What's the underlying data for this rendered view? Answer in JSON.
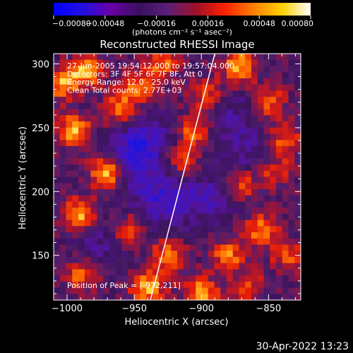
{
  "chart_data": {
    "type": "heatmap",
    "title": "Reconstructed RHESSI Image",
    "xlabel": "Heliocentric X (arcsec)",
    "ylabel": "Heliocentric Y (arcsec)",
    "xlim": [
      -1010,
      -826
    ],
    "ylim": [
      115,
      308
    ],
    "xticks": [
      -1000,
      -950,
      -900,
      -850
    ],
    "xtick_labels": [
      "−1000",
      "−950",
      "−900",
      "−850"
    ],
    "yticks": [
      150,
      200,
      250,
      300
    ],
    "ytick_labels": [
      "150",
      "200",
      "250",
      "300"
    ],
    "colorbar": {
      "range": [
        -0.0008,
        0.0008
      ],
      "ticks": [
        -0.0008,
        -0.00048,
        -0.00016,
        0.00016,
        0.00048,
        0.0008
      ],
      "tick_labels": [
        "−0.00080",
        "−0.00048",
        "−0.00016",
        "0.00016",
        "0.00048",
        "0.00080"
      ],
      "unit_label": "(photons cm⁻² s⁻¹ asec⁻²)",
      "colors": [
        "#0000ff",
        "#2010e0",
        "#6a00a8",
        "#3a1060",
        "#5a2078",
        "#a01028",
        "#ff2000",
        "#ff8000",
        "#ffd000",
        "#ffffff"
      ]
    },
    "limb_line": {
      "x": [
        -938,
        -890
      ],
      "y": [
        115,
        308
      ]
    },
    "annotations": [
      "27-Jun-2005 19:54:12.000 to 19:57:04.000",
      "Detectors: 3F 4F 5F 6F 7F 8F, Att 0",
      "Energy Range: 12.0 - 25.0 keV",
      "Clean    Total counts: 2.77E+03"
    ],
    "peak_label": "Position of Peak = [-972,211]",
    "bright_regions": [
      {
        "x": -970,
        "y": 215,
        "level": 1.0
      },
      {
        "x": -990,
        "y": 182,
        "level": 0.85
      },
      {
        "x": -995,
        "y": 248,
        "level": 0.8
      },
      {
        "x": -1003,
        "y": 285,
        "level": 0.8
      },
      {
        "x": -985,
        "y": 295,
        "level": 0.75
      },
      {
        "x": -960,
        "y": 265,
        "level": 0.7
      },
      {
        "x": -945,
        "y": 283,
        "level": 0.65
      },
      {
        "x": -928,
        "y": 300,
        "level": 0.55
      },
      {
        "x": -905,
        "y": 248,
        "level": 0.7
      },
      {
        "x": -896,
        "y": 275,
        "level": 0.6
      },
      {
        "x": -915,
        "y": 225,
        "level": 0.55
      },
      {
        "x": -872,
        "y": 298,
        "level": 0.85
      },
      {
        "x": -850,
        "y": 270,
        "level": 0.6
      },
      {
        "x": -838,
        "y": 240,
        "level": 0.6
      },
      {
        "x": -870,
        "y": 205,
        "level": 0.55
      },
      {
        "x": -845,
        "y": 215,
        "level": 0.5
      },
      {
        "x": -855,
        "y": 170,
        "level": 0.7
      },
      {
        "x": -880,
        "y": 150,
        "level": 0.65
      },
      {
        "x": -835,
        "y": 150,
        "level": 0.55
      },
      {
        "x": -925,
        "y": 150,
        "level": 0.65
      },
      {
        "x": -955,
        "y": 170,
        "level": 0.6
      },
      {
        "x": -940,
        "y": 125,
        "level": 0.85
      },
      {
        "x": -900,
        "y": 120,
        "level": 0.8
      },
      {
        "x": -990,
        "y": 135,
        "level": 0.6
      },
      {
        "x": -865,
        "y": 125,
        "level": 0.5
      }
    ],
    "dim_regions": [
      {
        "x": -950,
        "y": 225,
        "level": 1.0
      },
      {
        "x": -930,
        "y": 192,
        "level": 0.9
      },
      {
        "x": -895,
        "y": 195,
        "level": 0.7
      },
      {
        "x": -940,
        "y": 245,
        "level": 0.6
      },
      {
        "x": -880,
        "y": 260,
        "level": 0.5
      },
      {
        "x": -975,
        "y": 160,
        "level": 0.5
      },
      {
        "x": -865,
        "y": 232,
        "level": 0.45
      }
    ]
  },
  "timestamp": "30-Apr-2022 13:23"
}
